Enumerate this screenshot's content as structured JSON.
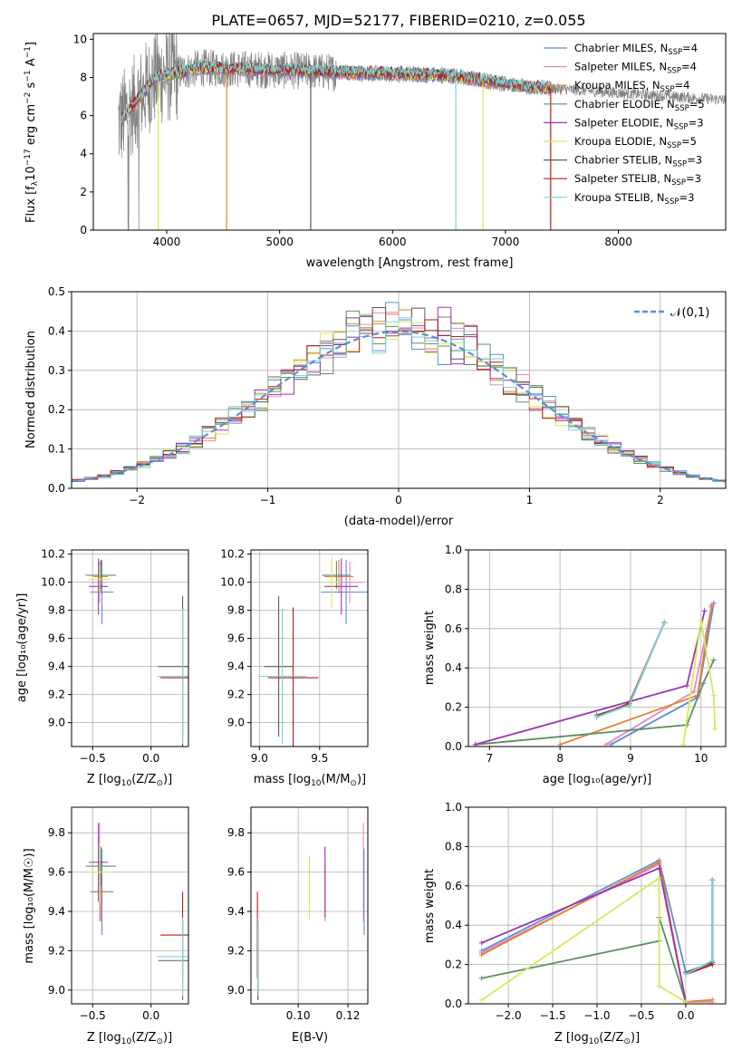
{
  "figure_title": "PLATE=0657, MJD=52177, FIBERID=0210, z=0.055",
  "colors": {
    "chabrier_miles": "#5b8fd6",
    "salpeter_miles": "#e58ac3",
    "kroupa_miles": "#e2812f",
    "chabrier_elodie": "#5d8f63",
    "salpeter_elodie": "#9a36b0",
    "kroupa_elodie": "#d6e85c",
    "chabrier_stelib": "#5a5a5a",
    "salpeter_stelib": "#b81c1c",
    "kroupa_stelib": "#77d5d6",
    "data": "#808080",
    "grid": "#b0b0b0"
  },
  "legend": {
    "entries": [
      {
        "label": "Chabrier MILES, N",
        "sub": "SSP",
        "tail": "=4",
        "color_key": "chabrier_miles"
      },
      {
        "label": "Salpeter MILES, N",
        "sub": "SSP",
        "tail": "=4",
        "color_key": "salpeter_miles"
      },
      {
        "label": "Kroupa MILES, N",
        "sub": "SSP",
        "tail": "=4",
        "color_key": "kroupa_miles"
      },
      {
        "label": "Chabrier ELODIE, N",
        "sub": "SSP",
        "tail": "=5",
        "color_key": "chabrier_elodie"
      },
      {
        "label": "Salpeter ELODIE, N",
        "sub": "SSP",
        "tail": "=3",
        "color_key": "salpeter_elodie"
      },
      {
        "label": "Kroupa ELODIE, N",
        "sub": "SSP",
        "tail": "=5",
        "color_key": "kroupa_elodie"
      },
      {
        "label": "Chabrier STELIB, N",
        "sub": "SSP",
        "tail": "=3",
        "color_key": "chabrier_stelib"
      },
      {
        "label": "Salpeter STELIB, N",
        "sub": "SSP",
        "tail": "=3",
        "color_key": "salpeter_stelib"
      },
      {
        "label": "Kroupa STELIB, N",
        "sub": "SSP",
        "tail": "=3",
        "color_key": "kroupa_stelib"
      }
    ]
  },
  "chart_data": [
    {
      "id": "spectrum",
      "type": "line",
      "xlabel": "wavelength [Angstrom, rest frame]",
      "ylabel": "Flux [fλ10⁻¹⁷ erg cm⁻² s⁻¹ A⁻¹]",
      "xlim": [
        3350,
        8950
      ],
      "ylim": [
        0,
        10.3
      ],
      "xticks": [
        "4000",
        "5000",
        "6000",
        "7000",
        "8000"
      ],
      "yticks": [
        "0",
        "2",
        "4",
        "6",
        "8",
        "10"
      ],
      "grid": false,
      "legend_placement": "top-right",
      "data_range": [
        3570,
        9050
      ],
      "models_range": [
        3600,
        7400
      ]
    },
    {
      "id": "residuals",
      "type": "step",
      "xlabel": "(data-model)/error",
      "ylabel": "Normed distribution",
      "xlim": [
        -2.5,
        2.5
      ],
      "ylim": [
        0,
        0.5
      ],
      "xticks": [
        "−2",
        "−1",
        "0",
        "1",
        "2"
      ],
      "yticks": [
        "0.0",
        "0.1",
        "0.2",
        "0.3",
        "0.4",
        "0.5"
      ],
      "grid": true,
      "legend": "𝒩(0,1)",
      "legend_placement": "top-right",
      "bin_width": 0.1
    },
    {
      "id": "age_vs_Z",
      "type": "errorbar",
      "xlabel_pre": "Z [log",
      "xlabel_sub": "10",
      "xlabel_post": "(Z/Z",
      "xlabel_end": ")]",
      "ylabel": "age  [log₁₀(age/yr)]",
      "xlim": [
        -0.68,
        0.32
      ],
      "ylim": [
        8.83,
        10.23
      ],
      "xticks": [
        "−0.5",
        "0.0"
      ],
      "yticks": [
        "9.0",
        "9.2",
        "9.4",
        "9.6",
        "9.8",
        "10.0",
        "10.2"
      ],
      "points": [
        {
          "model": "chabrier_miles",
          "x": -0.42,
          "xerr": 0.1,
          "y": 9.93,
          "yerr": 0.23
        },
        {
          "model": "salpeter_miles",
          "x": -0.44,
          "xerr": 0.07,
          "y": 10.0,
          "yerr": 0.15
        },
        {
          "model": "kroupa_miles",
          "x": -0.43,
          "xerr": 0.06,
          "y": 10.04,
          "yerr": 0.12
        },
        {
          "model": "chabrier_elodie",
          "x": -0.43,
          "xerr": 0.13,
          "y": 10.05,
          "yerr": 0.1
        },
        {
          "model": "salpeter_elodie",
          "x": -0.45,
          "xerr": 0.08,
          "y": 9.97,
          "yerr": 0.2
        },
        {
          "model": "kroupa_elodie",
          "x": -0.44,
          "xerr": 0.09,
          "y": 10.02,
          "yerr": 0.1
        },
        {
          "model": "chabrier_stelib",
          "x": 0.27,
          "xerr": 0.21,
          "y": 9.4,
          "yerr": 0.5
        },
        {
          "model": "salpeter_stelib",
          "x": 0.27,
          "xerr": 0.19,
          "y": 9.32,
          "yerr": 0.5
        },
        {
          "model": "kroupa_stelib",
          "x": 0.27,
          "xerr": 0.22,
          "y": 9.33,
          "yerr": 0.48
        }
      ]
    },
    {
      "id": "age_vs_mass",
      "type": "errorbar",
      "xlabel_pre": "mass [log",
      "xlabel_sub": "10",
      "xlabel_post": "(M/M",
      "xlabel_end": ")]",
      "xlim": [
        8.93,
        9.9
      ],
      "ylim": [
        8.83,
        10.23
      ],
      "xticks": [
        "9.0",
        "9.5"
      ],
      "yticks": [
        "9.0",
        "9.2",
        "9.4",
        "9.6",
        "9.8",
        "10.0",
        "10.2"
      ],
      "points": [
        {
          "model": "chabrier_miles",
          "x": 9.72,
          "xerr": 0.21,
          "y": 9.93,
          "yerr": 0.23
        },
        {
          "model": "salpeter_miles",
          "x": 9.75,
          "xerr": 0.12,
          "y": 10.0,
          "yerr": 0.15
        },
        {
          "model": "kroupa_miles",
          "x": 9.66,
          "xerr": 0.12,
          "y": 10.04,
          "yerr": 0.12
        },
        {
          "model": "chabrier_elodie",
          "x": 9.64,
          "xerr": 0.12,
          "y": 10.05,
          "yerr": 0.1
        },
        {
          "model": "salpeter_elodie",
          "x": 9.68,
          "xerr": 0.14,
          "y": 9.97,
          "yerr": 0.2
        },
        {
          "model": "kroupa_elodie",
          "x": 9.6,
          "xerr": 0.08,
          "y": 10.0,
          "yerr": 0.18
        },
        {
          "model": "chabrier_stelib",
          "x": 9.16,
          "xerr": 0.12,
          "y": 9.4,
          "yerr": 0.5
        },
        {
          "model": "salpeter_stelib",
          "x": 9.28,
          "xerr": 0.21,
          "y": 9.32,
          "yerr": 0.5
        },
        {
          "model": "kroupa_stelib",
          "x": 9.19,
          "xerr": 0.2,
          "y": 9.33,
          "yerr": 0.48
        }
      ]
    },
    {
      "id": "mass_weight_vs_age",
      "type": "line",
      "xlabel": "age  [log₁₀(age/yr)]",
      "ylabel": "mass weight",
      "xlim": [
        6.7,
        10.35
      ],
      "ylim": [
        0,
        1
      ],
      "xticks": [
        "7",
        "8",
        "9",
        "10"
      ],
      "yticks": [
        "0.0",
        "0.2",
        "0.4",
        "0.6",
        "0.8",
        "1.0"
      ],
      "grid": true,
      "series": [
        {
          "model": "chabrier_miles",
          "x": [
            8.72,
            9.95,
            10.18
          ],
          "y": [
            0.01,
            0.25,
            0.73
          ]
        },
        {
          "model": "salpeter_miles",
          "x": [
            8.65,
            9.9,
            10.15
          ],
          "y": [
            0.01,
            0.28,
            0.71
          ]
        },
        {
          "model": "kroupa_miles",
          "x": [
            8.0,
            9.95,
            10.15
          ],
          "y": [
            0.01,
            0.26,
            0.72
          ]
        },
        {
          "model": "chabrier_elodie",
          "x": [
            6.8,
            9.8,
            10.03,
            10.18
          ],
          "y": [
            0.01,
            0.11,
            0.32,
            0.44
          ]
        },
        {
          "model": "salpeter_elodie",
          "x": [
            6.8,
            9.8,
            10.05
          ],
          "y": [
            0.01,
            0.31,
            0.69
          ]
        },
        {
          "model": "kroupa_elodie",
          "x": [
            9.75,
            10.0,
            10.18,
            10.2
          ],
          "y": [
            0.01,
            0.64,
            0.26,
            0.09
          ]
        },
        {
          "model": "chabrier_stelib",
          "x": [
            8.52,
            8.98,
            9.48
          ],
          "y": [
            0.16,
            0.21,
            0.63
          ]
        },
        {
          "model": "salpeter_stelib",
          "x": [
            8.52,
            8.98,
            9.48
          ],
          "y": [
            0.15,
            0.22,
            0.63
          ]
        },
        {
          "model": "kroupa_stelib",
          "x": [
            8.52,
            8.98,
            9.48
          ],
          "y": [
            0.15,
            0.21,
            0.63
          ]
        }
      ]
    },
    {
      "id": "mass_vs_Z",
      "type": "errorbar",
      "xlabel_pre": "Z [log",
      "xlabel_sub": "10",
      "xlabel_post": "(Z/Z",
      "xlabel_end": ")]",
      "ylabel": "mass [log₁₀(M/M☉)]",
      "xlim": [
        -0.68,
        0.32
      ],
      "ylim": [
        8.93,
        9.93
      ],
      "xticks": [
        "−0.5",
        "0.0"
      ],
      "yticks": [
        "9.0",
        "9.2",
        "9.4",
        "9.6",
        "9.8"
      ],
      "points": [
        {
          "model": "chabrier_miles",
          "x": -0.42,
          "xerr": 0.1,
          "y": 9.5,
          "yerr": 0.22
        },
        {
          "model": "salpeter_miles",
          "x": -0.44,
          "xerr": 0.07,
          "y": 9.6,
          "yerr": 0.25
        },
        {
          "model": "kroupa_miles",
          "x": -0.43,
          "xerr": 0.06,
          "y": 9.5,
          "yerr": 0.15
        },
        {
          "model": "chabrier_elodie",
          "x": -0.43,
          "xerr": 0.13,
          "y": 9.63,
          "yerr": 0.1
        },
        {
          "model": "salpeter_elodie",
          "x": -0.45,
          "xerr": 0.08,
          "y": 9.65,
          "yerr": 0.2
        },
        {
          "model": "kroupa_elodie",
          "x": -0.44,
          "xerr": 0.09,
          "y": 9.6,
          "yerr": 0.15
        },
        {
          "model": "chabrier_stelib",
          "x": 0.27,
          "xerr": 0.21,
          "y": 9.15,
          "yerr": 0.2
        },
        {
          "model": "salpeter_stelib",
          "x": 0.27,
          "xerr": 0.19,
          "y": 9.28,
          "yerr": 0.22
        },
        {
          "model": "kroupa_stelib",
          "x": 0.27,
          "xerr": 0.22,
          "y": 9.17,
          "yerr": 0.2
        }
      ]
    },
    {
      "id": "mass_vs_EBV",
      "type": "errorbar",
      "xlabel": "E(B-V)",
      "xlim": [
        0.081,
        0.128
      ],
      "ylim": [
        8.93,
        9.93
      ],
      "xticks": [
        "0.10",
        "0.12"
      ],
      "yticks": [
        "9.0",
        "9.2",
        "9.4",
        "9.6",
        "9.8"
      ],
      "points": [
        {
          "model": "chabrier_miles",
          "x": 0.1265,
          "y": 9.5,
          "yerr": 0.22
        },
        {
          "model": "salpeter_miles",
          "x": 0.1262,
          "y": 9.6,
          "yerr": 0.25
        },
        {
          "model": "kroupa_miles",
          "x": 0.1108,
          "y": 9.5,
          "yerr": 0.15
        },
        {
          "model": "chabrier_elodie",
          "x": 0.0838,
          "y": 9.15,
          "yerr": 0.2
        },
        {
          "model": "salpeter_elodie",
          "x": 0.1108,
          "y": 9.55,
          "yerr": 0.18
        },
        {
          "model": "kroupa_elodie",
          "x": 0.1045,
          "y": 9.52,
          "yerr": 0.16
        },
        {
          "model": "chabrier_stelib",
          "x": 0.0838,
          "y": 9.15,
          "yerr": 0.2
        },
        {
          "model": "salpeter_stelib",
          "x": 0.0836,
          "y": 9.28,
          "yerr": 0.22
        },
        {
          "model": "kroupa_stelib",
          "x": 0.0838,
          "y": 9.17,
          "yerr": 0.2
        }
      ]
    },
    {
      "id": "mass_weight_vs_Z",
      "type": "line",
      "xlabel_pre": "Z [log",
      "xlabel_sub": "10",
      "xlabel_post": "(Z/Z",
      "xlabel_end": ")]",
      "ylabel": "mass weight",
      "xlim": [
        -2.45,
        0.45
      ],
      "ylim": [
        0,
        1
      ],
      "xticks": [
        "−2.0",
        "−1.5",
        "−1.0",
        "−0.5",
        "0.0"
      ],
      "yticks": [
        "0.0",
        "0.2",
        "0.4",
        "0.6",
        "0.8",
        "1.0"
      ],
      "grid": true,
      "series": [
        {
          "model": "chabrier_miles",
          "x": [
            -2.3,
            -0.3,
            0.0,
            0.3
          ],
          "y": [
            0.27,
            0.73,
            0.16,
            0.21
          ]
        },
        {
          "model": "salpeter_miles",
          "x": [
            -2.3,
            -0.3,
            0.0,
            0.3
          ],
          "y": [
            0.26,
            0.71,
            0.01,
            0.01
          ]
        },
        {
          "model": "kroupa_miles",
          "x": [
            -2.3,
            -0.3,
            0.0,
            0.3
          ],
          "y": [
            0.25,
            0.72,
            0.01,
            0.02
          ]
        },
        {
          "model": "chabrier_elodie",
          "x": [
            -2.3,
            -0.3,
            -0.3,
            0.0
          ],
          "y": [
            0.13,
            0.32,
            0.44,
            0.01
          ]
        },
        {
          "model": "salpeter_elodie",
          "x": [
            -2.3,
            -0.3,
            0.0
          ],
          "y": [
            0.31,
            0.69,
            0.01
          ]
        },
        {
          "model": "kroupa_elodie",
          "x": [
            -2.3,
            -0.3,
            -0.3,
            0.0
          ],
          "y": [
            0.02,
            0.64,
            0.09,
            0.01
          ]
        },
        {
          "model": "chabrier_stelib",
          "x": [
            0.0,
            0.3,
            0.3
          ],
          "y": [
            0.16,
            0.21,
            0.63
          ]
        },
        {
          "model": "salpeter_stelib",
          "x": [
            0.0,
            0.3,
            0.3
          ],
          "y": [
            0.15,
            0.2,
            0.63
          ]
        },
        {
          "model": "kroupa_stelib",
          "x": [
            0.0,
            0.3,
            0.3
          ],
          "y": [
            0.15,
            0.22,
            0.63
          ]
        }
      ]
    }
  ]
}
